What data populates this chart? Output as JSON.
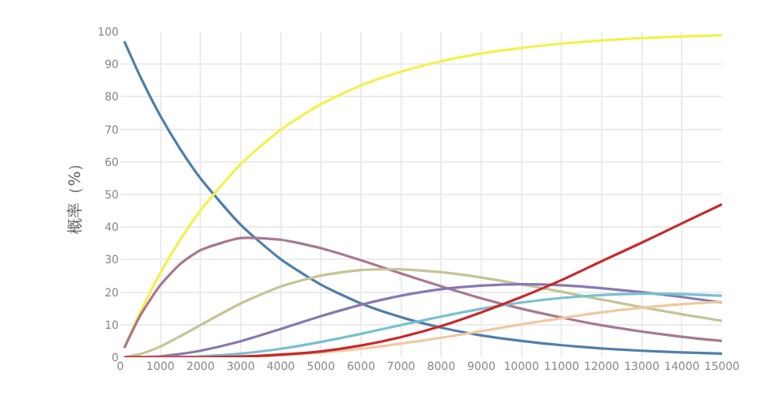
{
  "chart_data": {
    "type": "line",
    "ylabel": "概率（%）",
    "x": [
      100,
      500,
      1000,
      1500,
      2000,
      3000,
      4000,
      5000,
      6000,
      7000,
      8000,
      9000,
      10000,
      11000,
      12000,
      13000,
      14000,
      15000
    ],
    "series": [
      {
        "color": "#4f7fa8",
        "values": [
          97.0,
          86.1,
          74.1,
          63.8,
          54.9,
          40.7,
          30.1,
          22.3,
          16.5,
          12.3,
          9.1,
          6.7,
          5.0,
          3.7,
          2.7,
          2.0,
          1.5,
          1.1
        ]
      },
      {
        "color": "#f2f24a",
        "values": [
          3.0,
          13.9,
          25.9,
          36.2,
          45.1,
          59.3,
          69.9,
          77.7,
          83.5,
          87.7,
          90.9,
          93.3,
          95.0,
          96.3,
          97.3,
          98.0,
          98.5,
          98.9
        ]
      },
      {
        "color": "#a87890",
        "values": [
          2.9,
          12.9,
          22.2,
          28.7,
          32.9,
          36.6,
          36.1,
          33.5,
          29.8,
          25.7,
          21.8,
          18.1,
          14.9,
          12.2,
          9.8,
          7.9,
          6.3,
          5.0
        ]
      },
      {
        "color": "#c4c496",
        "values": [
          0.0,
          1.0,
          3.3,
          6.5,
          9.9,
          16.5,
          21.7,
          25.1,
          26.8,
          27.0,
          26.1,
          24.5,
          22.4,
          20.1,
          17.7,
          15.4,
          13.2,
          11.2
        ]
      },
      {
        "color": "#8878b0",
        "values": [
          0.0,
          0.1,
          0.3,
          1.0,
          2.0,
          4.9,
          8.7,
          12.6,
          16.1,
          18.9,
          20.9,
          22.0,
          22.4,
          22.1,
          21.2,
          20.0,
          18.5,
          16.8
        ]
      },
      {
        "color": "#78c0d0",
        "values": [
          0.0,
          0.0,
          0.0,
          0.1,
          0.3,
          1.1,
          2.6,
          4.7,
          7.2,
          9.9,
          12.5,
          14.9,
          16.8,
          18.2,
          19.1,
          19.5,
          19.4,
          18.9
        ]
      },
      {
        "color": "#f0c8a0",
        "values": [
          0.0,
          0.0,
          0.0,
          0.0,
          0.0,
          0.2,
          0.6,
          1.4,
          2.6,
          4.2,
          6.0,
          8.0,
          10.1,
          12.0,
          13.8,
          15.2,
          16.3,
          17.0
        ]
      },
      {
        "color": "#c8282a",
        "values": [
          0.0,
          0.0,
          0.0,
          0.0,
          0.0,
          0.2,
          0.8,
          1.8,
          3.6,
          6.2,
          9.6,
          13.8,
          18.5,
          23.7,
          29.5,
          35.2,
          41.1,
          47.0
        ]
      }
    ],
    "xlim": [
      0,
      15000
    ],
    "xticks": [
      0,
      1000,
      2000,
      3000,
      4000,
      5000,
      6000,
      7000,
      8000,
      9000,
      10000,
      11000,
      12000,
      13000,
      14000,
      15000
    ],
    "ylim": [
      0,
      100
    ],
    "yticks": [
      0,
      10,
      20,
      30,
      40,
      50,
      60,
      70,
      80,
      90,
      100
    ],
    "grid": true,
    "marker": "none",
    "line_style": "solid"
  }
}
